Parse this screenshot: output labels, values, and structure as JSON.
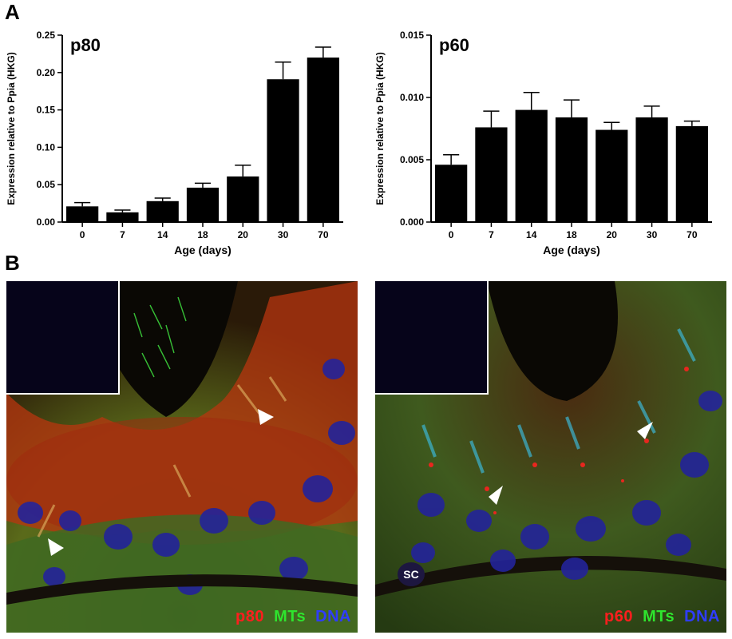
{
  "panels": {
    "a_letter": "A",
    "b_letter": "B"
  },
  "chart_data": [
    {
      "type": "bar",
      "title": "p80",
      "ylabel": "Expression relative to Ppia (HKG)",
      "xlabel": "Age (days)",
      "categories": [
        "0",
        "7",
        "14",
        "18",
        "20",
        "30",
        "70"
      ],
      "values": [
        0.021,
        0.013,
        0.028,
        0.046,
        0.061,
        0.191,
        0.22
      ],
      "errors": [
        0.005,
        0.003,
        0.004,
        0.006,
        0.015,
        0.023,
        0.014
      ],
      "ylim": [
        0,
        0.25
      ],
      "yticks": [
        "0.00",
        "0.05",
        "0.10",
        "0.15",
        "0.20",
        "0.25"
      ],
      "color": "#000000"
    },
    {
      "type": "bar",
      "title": "p60",
      "ylabel": "Expression relative to Ppia (HKG)",
      "xlabel": "Age (days)",
      "categories": [
        "0",
        "7",
        "14",
        "18",
        "20",
        "30",
        "70"
      ],
      "values": [
        0.0046,
        0.0076,
        0.009,
        0.0084,
        0.0074,
        0.0084,
        0.0077
      ],
      "errors": [
        0.0008,
        0.0013,
        0.0014,
        0.0014,
        0.0006,
        0.0009,
        0.0004
      ],
      "ylim": [
        0,
        0.015
      ],
      "yticks": [
        "0.000",
        "0.005",
        "0.010",
        "0.015"
      ],
      "color": "#000000"
    }
  ],
  "micrographs": [
    {
      "labels": [
        "p80",
        "MTs",
        "DNA"
      ]
    },
    {
      "labels": [
        "p60",
        "MTs",
        "DNA"
      ],
      "marker": "SC"
    }
  ],
  "colors": {
    "p_stain": "#ff1e1e",
    "mt_stain": "#2ee52e",
    "dna_stain": "#2f3cff"
  }
}
